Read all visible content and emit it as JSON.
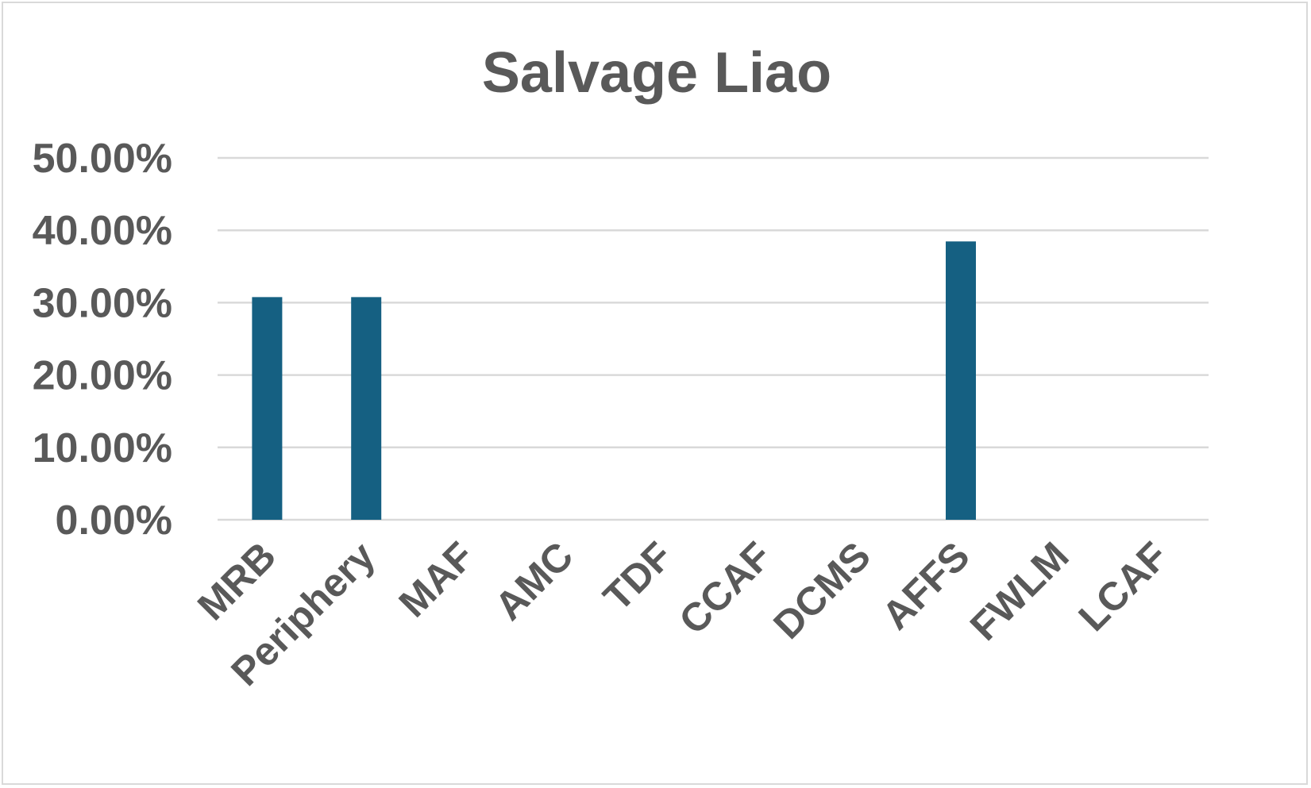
{
  "chart_data": {
    "type": "bar",
    "title": "Salvage Liao",
    "xlabel": "",
    "ylabel": "",
    "categories": [
      "MRB",
      "Periphery",
      "MAF",
      "AMC",
      "TDF",
      "CCAF",
      "DCMS",
      "AFFS",
      "FWLM",
      "LCAF"
    ],
    "values": [
      30.77,
      30.77,
      0,
      0,
      0,
      0,
      0,
      38.46,
      0,
      0
    ],
    "ylim": [
      0,
      50
    ],
    "yticks": [
      0,
      10,
      20,
      30,
      40,
      50
    ],
    "ytick_labels": [
      "0.00%",
      "10.00%",
      "20.00%",
      "30.00%",
      "40.00%",
      "50.00%"
    ],
    "grid": true,
    "legend": "none",
    "colors": {
      "bar": "#156082",
      "text": "#595959",
      "grid": "#d9d9d9"
    }
  }
}
